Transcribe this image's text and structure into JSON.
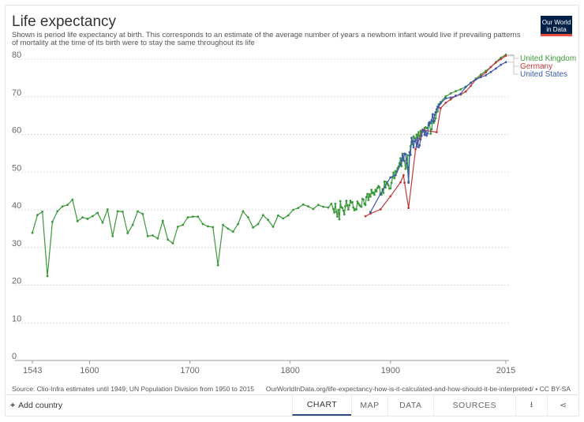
{
  "header": {
    "title": "Life expectancy",
    "subtitle": "Shown is period life expectancy at birth. This corresponds to an estimate of the average number of years a newborn infant would live if prevailing patterns of mortality at the time of its birth were to stay the same throughout its life",
    "logo_line1": "Our World",
    "logo_line2": "in Data"
  },
  "footer": {
    "source": "Source: Clio-Infra estimates until 1949; UN Population Division from 1950 to 2015",
    "license": "OurWorldInData.org/life-expectancy-how-is-it-calculated-and-how-should-it-be-interpreted/ • CC BY-SA"
  },
  "controls": {
    "add_country": "Add country",
    "add_icon": "+",
    "tabs": [
      "CHART",
      "MAP",
      "DATA",
      "SOURCES"
    ],
    "active_tab": "CHART",
    "download_icon": "⭳",
    "share_icon": "⋖"
  },
  "colors": {
    "united_kingdom": "#3a9a3a",
    "germany": "#c0393b",
    "united_states": "#3c5ba8",
    "grid": "#dddddd",
    "axis": "#999999"
  },
  "chart_data": {
    "type": "line",
    "title": "Life expectancy",
    "xlabel": "",
    "ylabel": "",
    "xlim": [
      1543,
      2015
    ],
    "ylim": [
      0,
      80
    ],
    "x_ticks": [
      1543,
      1600,
      1700,
      1800,
      1900,
      2015
    ],
    "y_ticks": [
      0,
      10,
      20,
      30,
      40,
      50,
      60,
      70,
      80
    ],
    "grid": true,
    "legend_position": "right-end",
    "series": [
      {
        "name": "United Kingdom",
        "color": "#3a9a3a",
        "points": [
          [
            1543,
            33.9
          ],
          [
            1548,
            38.6
          ],
          [
            1553,
            39.5
          ],
          [
            1558,
            22.4
          ],
          [
            1563,
            36.8
          ],
          [
            1568,
            39.6
          ],
          [
            1573,
            40.9
          ],
          [
            1578,
            41.3
          ],
          [
            1583,
            42.7
          ],
          [
            1588,
            37.0
          ],
          [
            1593,
            38.0
          ],
          [
            1598,
            37.6
          ],
          [
            1603,
            38.3
          ],
          [
            1608,
            39.2
          ],
          [
            1613,
            36.6
          ],
          [
            1618,
            40.1
          ],
          [
            1623,
            33.0
          ],
          [
            1628,
            39.6
          ],
          [
            1633,
            39.5
          ],
          [
            1638,
            33.8
          ],
          [
            1643,
            36.0
          ],
          [
            1648,
            39.6
          ],
          [
            1653,
            38.9
          ],
          [
            1658,
            33.0
          ],
          [
            1663,
            33.2
          ],
          [
            1668,
            32.4
          ],
          [
            1673,
            37.1
          ],
          [
            1678,
            32.1
          ],
          [
            1683,
            31.1
          ],
          [
            1688,
            35.5
          ],
          [
            1693,
            36.0
          ],
          [
            1698,
            38.0
          ],
          [
            1703,
            38.2
          ],
          [
            1708,
            38.2
          ],
          [
            1713,
            36.2
          ],
          [
            1718,
            35.6
          ],
          [
            1723,
            35.4
          ],
          [
            1728,
            25.3
          ],
          [
            1733,
            36.0
          ],
          [
            1738,
            35.0
          ],
          [
            1743,
            34.2
          ],
          [
            1748,
            36.2
          ],
          [
            1753,
            39.6
          ],
          [
            1758,
            38.0
          ],
          [
            1763,
            35.3
          ],
          [
            1768,
            36.2
          ],
          [
            1773,
            38.6
          ],
          [
            1778,
            37.3
          ],
          [
            1783,
            35.5
          ],
          [
            1788,
            38.5
          ],
          [
            1793,
            37.7
          ],
          [
            1798,
            38.5
          ],
          [
            1803,
            40.0
          ],
          [
            1808,
            40.5
          ],
          [
            1813,
            41.4
          ],
          [
            1818,
            40.9
          ],
          [
            1823,
            40.2
          ],
          [
            1828,
            41.3
          ],
          [
            1833,
            40.8
          ],
          [
            1838,
            40.6
          ],
          [
            1841,
            41.6
          ],
          [
            1843,
            40.2
          ],
          [
            1844,
            39.3
          ],
          [
            1845,
            41.6
          ],
          [
            1846,
            39.5
          ],
          [
            1847,
            38.2
          ],
          [
            1848,
            40.0
          ],
          [
            1849,
            37.5
          ],
          [
            1850,
            42.3
          ],
          [
            1851,
            40.7
          ],
          [
            1852,
            40.5
          ],
          [
            1853,
            39.8
          ],
          [
            1854,
            38.8
          ],
          [
            1855,
            40.9
          ],
          [
            1856,
            42.4
          ],
          [
            1857,
            41.2
          ],
          [
            1858,
            40.1
          ],
          [
            1859,
            41.2
          ],
          [
            1860,
            42.4
          ],
          [
            1861,
            41.9
          ],
          [
            1862,
            42.0
          ],
          [
            1863,
            40.6
          ],
          [
            1864,
            39.9
          ],
          [
            1865,
            40.2
          ],
          [
            1866,
            40.1
          ],
          [
            1867,
            42.2
          ],
          [
            1868,
            41.7
          ],
          [
            1869,
            41.3
          ],
          [
            1870,
            41.0
          ],
          [
            1871,
            40.8
          ],
          [
            1872,
            42.9
          ],
          [
            1873,
            42.7
          ],
          [
            1874,
            41.6
          ],
          [
            1875,
            41.3
          ],
          [
            1876,
            43.4
          ],
          [
            1877,
            44.2
          ],
          [
            1878,
            42.6
          ],
          [
            1879,
            44.1
          ],
          [
            1880,
            43.5
          ],
          [
            1881,
            45.3
          ],
          [
            1882,
            44.4
          ],
          [
            1883,
            44.6
          ],
          [
            1884,
            44.0
          ],
          [
            1885,
            45.3
          ],
          [
            1886,
            44.9
          ],
          [
            1887,
            45.8
          ],
          [
            1888,
            46.3
          ],
          [
            1889,
            46.0
          ],
          [
            1890,
            44.1
          ],
          [
            1891,
            44.0
          ],
          [
            1892,
            45.5
          ],
          [
            1893,
            44.5
          ],
          [
            1894,
            47.5
          ],
          [
            1895,
            45.9
          ],
          [
            1896,
            47.4
          ],
          [
            1897,
            46.9
          ],
          [
            1898,
            46.5
          ],
          [
            1899,
            45.6
          ],
          [
            1900,
            45.7
          ],
          [
            1901,
            47.2
          ],
          [
            1902,
            48.6
          ],
          [
            1903,
            49.9
          ],
          [
            1904,
            48.4
          ],
          [
            1905,
            50.3
          ],
          [
            1906,
            50.0
          ],
          [
            1907,
            51.0
          ],
          [
            1908,
            51.5
          ],
          [
            1909,
            52.4
          ],
          [
            1910,
            53.7
          ],
          [
            1911,
            51.6
          ],
          [
            1912,
            54.9
          ],
          [
            1913,
            53.5
          ],
          [
            1914,
            52.9
          ],
          [
            1915,
            50.9
          ],
          [
            1916,
            53.2
          ],
          [
            1917,
            54.5
          ],
          [
            1918,
            47.5
          ],
          [
            1919,
            54.4
          ],
          [
            1920,
            56.9
          ],
          [
            1921,
            58.0
          ],
          [
            1922,
            57.4
          ],
          [
            1923,
            59.5
          ],
          [
            1924,
            59.0
          ],
          [
            1925,
            58.9
          ],
          [
            1926,
            60.0
          ],
          [
            1927,
            59.6
          ],
          [
            1928,
            60.6
          ],
          [
            1929,
            58.9
          ],
          [
            1930,
            61.0
          ],
          [
            1931,
            60.5
          ],
          [
            1932,
            60.8
          ],
          [
            1933,
            60.8
          ],
          [
            1934,
            61.7
          ],
          [
            1935,
            61.9
          ],
          [
            1936,
            61.7
          ],
          [
            1937,
            61.7
          ],
          [
            1938,
            63.0
          ],
          [
            1939,
            63.0
          ],
          [
            1940,
            60.2
          ],
          [
            1941,
            61.4
          ],
          [
            1942,
            63.4
          ],
          [
            1943,
            63.1
          ],
          [
            1944,
            63.6
          ],
          [
            1945,
            64.3
          ],
          [
            1946,
            66.0
          ],
          [
            1947,
            66.1
          ],
          [
            1948,
            68.0
          ],
          [
            1949,
            68.1
          ],
          [
            1950,
            68.6
          ],
          [
            1955,
            70.1
          ],
          [
            1960,
            70.9
          ],
          [
            1965,
            71.5
          ],
          [
            1970,
            72.0
          ],
          [
            1975,
            72.7
          ],
          [
            1980,
            73.7
          ],
          [
            1985,
            74.8
          ],
          [
            1990,
            75.9
          ],
          [
            1995,
            76.9
          ],
          [
            2000,
            77.9
          ],
          [
            2005,
            79.2
          ],
          [
            2010,
            80.4
          ],
          [
            2015,
            81.2
          ]
        ]
      },
      {
        "name": "Germany",
        "color": "#c0393b",
        "points": [
          [
            1875,
            38.3
          ],
          [
            1880,
            39.0
          ],
          [
            1890,
            40.1
          ],
          [
            1900,
            43.6
          ],
          [
            1910,
            47.3
          ],
          [
            1913,
            49.2
          ],
          [
            1914,
            47.2
          ],
          [
            1918,
            40.5
          ],
          [
            1925,
            56.1
          ],
          [
            1932,
            61.3
          ],
          [
            1934,
            61.1
          ],
          [
            1946,
            60.6
          ],
          [
            1950,
            67.0
          ],
          [
            1955,
            68.4
          ],
          [
            1960,
            69.3
          ],
          [
            1965,
            70.3
          ],
          [
            1970,
            70.6
          ],
          [
            1975,
            71.4
          ],
          [
            1980,
            72.9
          ],
          [
            1985,
            74.6
          ],
          [
            1990,
            75.4
          ],
          [
            1995,
            76.5
          ],
          [
            2000,
            77.9
          ],
          [
            2005,
            79.1
          ],
          [
            2010,
            80.0
          ],
          [
            2015,
            80.9
          ]
        ]
      },
      {
        "name": "United States",
        "color": "#3c5ba8",
        "points": [
          [
            1880,
            39.4
          ],
          [
            1890,
            44.2
          ],
          [
            1900,
            48.6
          ],
          [
            1905,
            49.2
          ],
          [
            1910,
            52.0
          ],
          [
            1911,
            53.1
          ],
          [
            1912,
            54.4
          ],
          [
            1913,
            53.1
          ],
          [
            1914,
            54.9
          ],
          [
            1915,
            54.8
          ],
          [
            1916,
            52.4
          ],
          [
            1917,
            51.3
          ],
          [
            1918,
            47.2
          ],
          [
            1919,
            55.3
          ],
          [
            1920,
            54.6
          ],
          [
            1921,
            59.1
          ],
          [
            1922,
            58.1
          ],
          [
            1923,
            56.6
          ],
          [
            1924,
            58.2
          ],
          [
            1925,
            58.5
          ],
          [
            1926,
            56.8
          ],
          [
            1927,
            59.1
          ],
          [
            1928,
            56.6
          ],
          [
            1929,
            57.1
          ],
          [
            1930,
            58.7
          ],
          [
            1931,
            59.6
          ],
          [
            1932,
            61.0
          ],
          [
            1933,
            61.1
          ],
          [
            1934,
            59.9
          ],
          [
            1935,
            60.8
          ],
          [
            1936,
            59.7
          ],
          [
            1937,
            60.3
          ],
          [
            1938,
            62.5
          ],
          [
            1939,
            63.3
          ],
          [
            1940,
            63.0
          ],
          [
            1941,
            63.8
          ],
          [
            1942,
            65.4
          ],
          [
            1943,
            63.5
          ],
          [
            1944,
            65.2
          ],
          [
            1945,
            65.9
          ],
          [
            1946,
            66.7
          ],
          [
            1947,
            67.4
          ],
          [
            1948,
            67.2
          ],
          [
            1949,
            68.0
          ],
          [
            1950,
            68.3
          ],
          [
            1955,
            69.6
          ],
          [
            1960,
            69.8
          ],
          [
            1965,
            70.2
          ],
          [
            1970,
            70.8
          ],
          [
            1975,
            72.6
          ],
          [
            1980,
            73.7
          ],
          [
            1985,
            74.6
          ],
          [
            1990,
            75.2
          ],
          [
            1995,
            75.7
          ],
          [
            2000,
            76.6
          ],
          [
            2005,
            77.5
          ],
          [
            2010,
            78.5
          ],
          [
            2015,
            79.2
          ]
        ]
      }
    ]
  }
}
